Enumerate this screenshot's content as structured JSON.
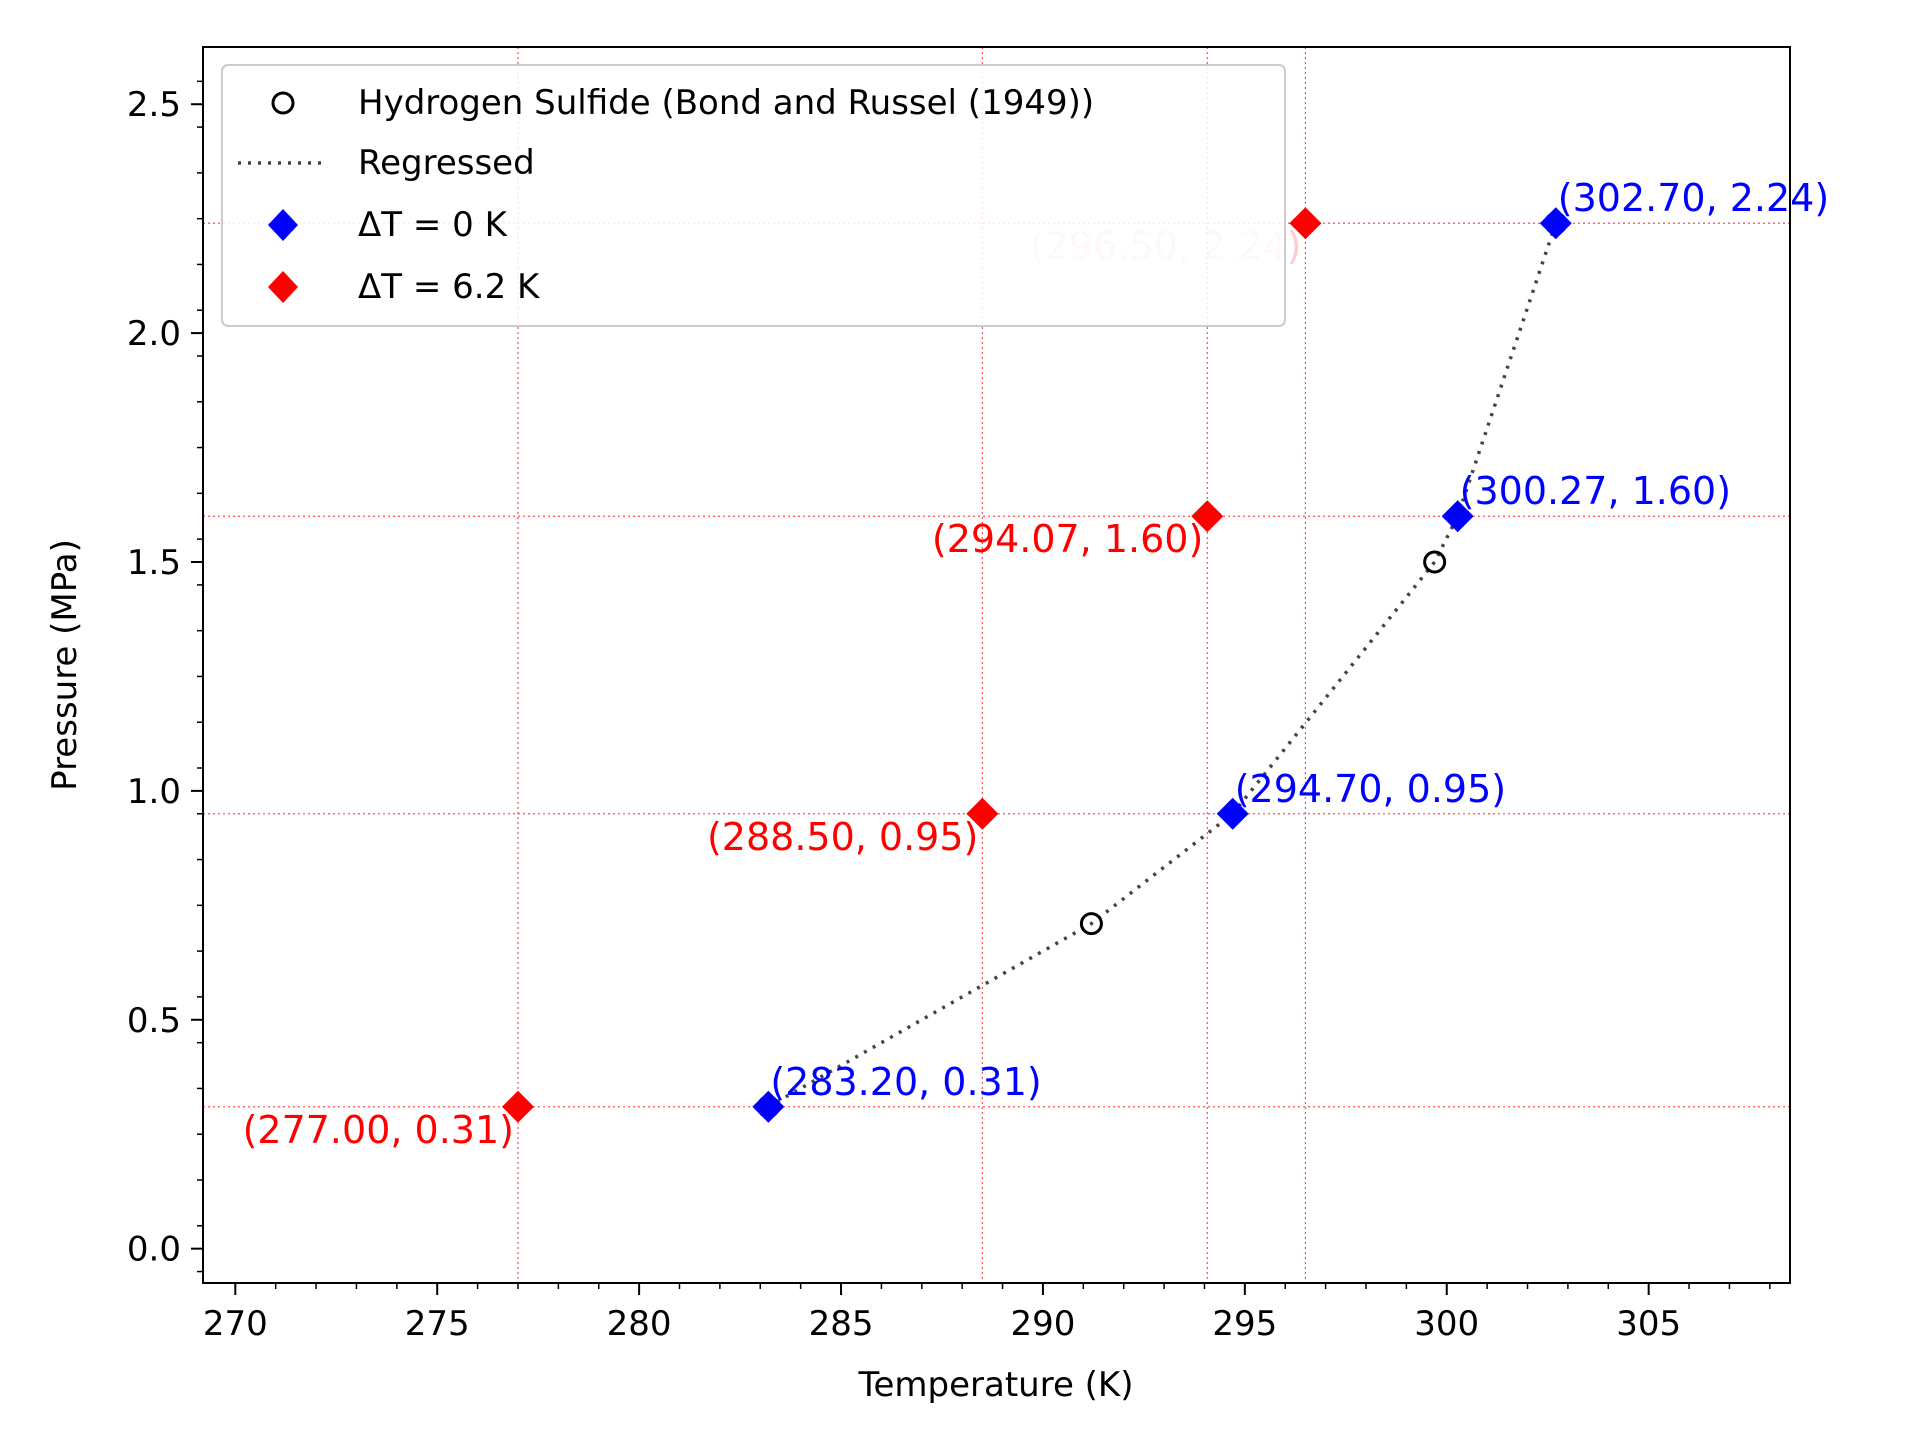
{
  "chart_data": {
    "type": "scatter",
    "title": "",
    "xlabel": "Temperature (K)",
    "ylabel": "Pressure (MPa)",
    "xlim": [
      269.2,
      308.5
    ],
    "ylim": [
      -0.075,
      2.625
    ],
    "xticks": [
      270,
      275,
      280,
      285,
      290,
      295,
      300,
      305
    ],
    "xtick_labels": [
      "270",
      "275",
      "280",
      "285",
      "290",
      "295",
      "300",
      "305"
    ],
    "yticks": [
      0.0,
      0.5,
      1.0,
      1.5,
      2.0,
      2.5
    ],
    "ytick_labels": [
      "0.0",
      "0.5",
      "1.0",
      "1.5",
      "2.0",
      "2.5"
    ],
    "grid": "red dotted reference lines at the shifted data points",
    "legend_position": "upper-left",
    "legend": [
      {
        "label": "Hydrogen Sulfide (Bond and Russel (1949))",
        "marker": "open-circle",
        "color": "#000000"
      },
      {
        "label": "Regressed",
        "marker": "dotted-line",
        "color": "#444444"
      },
      {
        "label": "ΔT = 0 K",
        "marker": "diamond",
        "color": "#0000ff"
      },
      {
        "label": "ΔT = 6.2 K",
        "marker": "diamond",
        "color": "#ff0000"
      }
    ],
    "series": [
      {
        "name": "Hydrogen Sulfide (Bond and Russel (1949))",
        "kind": "scatter",
        "color": "#000000",
        "points": [
          {
            "x": 283.2,
            "y": 0.31
          },
          {
            "x": 291.2,
            "y": 0.71
          },
          {
            "x": 299.7,
            "y": 1.5
          },
          {
            "x": 302.7,
            "y": 2.24
          }
        ]
      },
      {
        "name": "Regressed",
        "kind": "line",
        "color": "#444444",
        "points": [
          {
            "x": 283.2,
            "y": 0.31
          },
          {
            "x": 291.2,
            "y": 0.71
          },
          {
            "x": 294.7,
            "y": 0.95
          },
          {
            "x": 299.7,
            "y": 1.5
          },
          {
            "x": 300.27,
            "y": 1.6
          },
          {
            "x": 302.7,
            "y": 2.24
          }
        ]
      },
      {
        "name": "ΔT = 0 K",
        "kind": "scatter",
        "color": "#0000ff",
        "points": [
          {
            "x": 283.2,
            "y": 0.31,
            "label": "(283.20, 0.31)"
          },
          {
            "x": 294.7,
            "y": 0.95,
            "label": "(294.70, 0.95)"
          },
          {
            "x": 300.27,
            "y": 1.6,
            "label": "(300.27, 1.60)"
          },
          {
            "x": 302.7,
            "y": 2.24,
            "label": "(302.70, 2.24)"
          }
        ]
      },
      {
        "name": "ΔT = 6.2 K",
        "kind": "scatter",
        "color": "#ff0000",
        "points": [
          {
            "x": 277.0,
            "y": 0.31,
            "label": "(277.00, 0.31)"
          },
          {
            "x": 288.5,
            "y": 0.95,
            "label": "(288.50, 0.95)"
          },
          {
            "x": 294.07,
            "y": 1.6,
            "label": "(294.07, 1.60)"
          },
          {
            "x": 296.5,
            "y": 2.24,
            "label": "(296.50, 2.24)"
          }
        ]
      }
    ],
    "reference_lines": {
      "x": [
        277.0,
        288.5,
        294.07,
        296.5
      ],
      "y": [
        0.31,
        0.95,
        1.6,
        2.24
      ],
      "color": "#ff0000"
    }
  }
}
